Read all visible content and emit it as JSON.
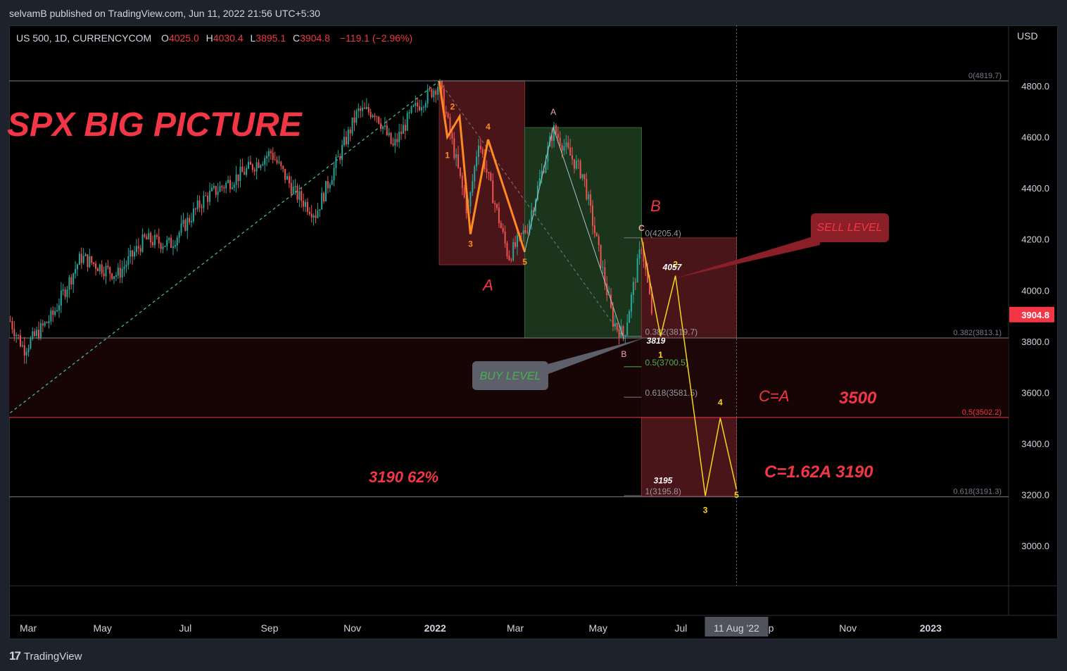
{
  "header": {
    "published": "selvamB published on TradingView.com, Jun 11, 2022 21:56 UTC+5:30"
  },
  "footer": {
    "brand": "TradingView"
  },
  "chart_data": {
    "type": "candlestick",
    "symbol": "US 500, 1D, CURRENCYCOM",
    "ohlc": {
      "O": "4025.0",
      "H": "4030.4",
      "L": "3895.1",
      "C": "3904.8",
      "change": "−119.1 (−2.96%)"
    },
    "currency": "USD",
    "last_price": "3904.8",
    "title": "SPX BIG PICTURE",
    "y_ticks": [
      "4800.0",
      "4600.0",
      "4400.0",
      "4200.0",
      "4000.0",
      "3800.0",
      "3600.0",
      "3400.0",
      "3200.0",
      "3000.0"
    ],
    "y_tick_values": [
      4800,
      4600,
      4400,
      4200,
      4000,
      3800,
      3600,
      3400,
      3200,
      3000
    ],
    "ylim": [
      2840,
      4990
    ],
    "x_ticks": [
      "Mar",
      "May",
      "Jul",
      "Sep",
      "Nov",
      "2022",
      "Mar",
      "May",
      "Jul",
      "Sep",
      "Nov",
      "2023"
    ],
    "x_tick_dates": [
      "2021-03-01",
      "2021-05-01",
      "2021-07-01",
      "2021-09-01",
      "2021-11-01",
      "2022-01-01",
      "2022-03-01",
      "2022-05-01",
      "2022-07-01",
      "2022-09-01",
      "2022-11-01",
      "2023-01-01"
    ],
    "cursor_date_label": "11 Aug '22",
    "fib_levels": [
      {
        "label": "0(4819.7)",
        "value": 4819.7
      },
      {
        "label": "0.382(3813.1)",
        "value": 3813.1
      },
      {
        "label": "0.5(3502.2)",
        "value": 3502.2,
        "color": "#f23645"
      },
      {
        "label": "0.618(3191.3)",
        "value": 3191.3
      }
    ],
    "inner_fib_levels": [
      {
        "label": "0(4205.4)",
        "value": 4205.4
      },
      {
        "label": "0.382(3819.7)",
        "value": 3819.7
      },
      {
        "label": "0.5(3700.5)",
        "value": 3700.5,
        "color": "#4caf50"
      },
      {
        "label": "0.618(3581.5)",
        "value": 3581.5
      },
      {
        "label": "1(3195.8)",
        "value": 3195.8
      }
    ],
    "price_path": [
      [
        "2021-02-22",
        3880
      ],
      [
        "2021-03-04",
        3770
      ],
      [
        "2021-03-25",
        3900
      ],
      [
        "2021-04-15",
        4130
      ],
      [
        "2021-05-12",
        4060
      ],
      [
        "2021-06-01",
        4200
      ],
      [
        "2021-06-20",
        4180
      ],
      [
        "2021-07-15",
        4360
      ],
      [
        "2021-08-15",
        4470
      ],
      [
        "2021-09-02",
        4540
      ],
      [
        "2021-09-20",
        4380
      ],
      [
        "2021-10-05",
        4300
      ],
      [
        "2021-10-25",
        4560
      ],
      [
        "2021-11-05",
        4700
      ],
      [
        "2021-11-18",
        4700
      ],
      [
        "2021-12-01",
        4560
      ],
      [
        "2021-12-15",
        4700
      ],
      [
        "2022-01-04",
        4810
      ],
      [
        "2022-01-25",
        4300
      ],
      [
        "2022-02-02",
        4590
      ],
      [
        "2022-02-24",
        4130
      ],
      [
        "2022-03-10",
        4250
      ],
      [
        "2022-03-29",
        4630
      ],
      [
        "2022-04-20",
        4450
      ],
      [
        "2022-05-12",
        3880
      ],
      [
        "2022-05-20",
        3820
      ],
      [
        "2022-06-02",
        4180
      ],
      [
        "2022-06-10",
        3900
      ]
    ],
    "waves_orange": {
      "points": [
        [
          "2022-01-04",
          4819
        ],
        [
          "2022-01-10",
          4600
        ],
        [
          "2022-01-19",
          4680
        ],
        [
          "2022-01-27",
          4220
        ],
        [
          "2022-02-09",
          4590
        ],
        [
          "2022-03-08",
          4150
        ]
      ],
      "labels": [
        "1",
        "2",
        "3",
        "4",
        "5"
      ],
      "wave_label": "A"
    },
    "waves_green": {
      "points": [
        [
          "2022-03-08",
          4150
        ],
        [
          "2022-03-29",
          4637
        ],
        [
          "2022-05-20",
          3810
        ]
      ],
      "labels": [
        "A",
        "B"
      ],
      "label_b": "B"
    },
    "waves_yellow": {
      "points": [
        [
          "2022-06-02",
          4205
        ],
        [
          "2022-06-16",
          3819
        ],
        [
          "2022-06-27",
          4057
        ],
        [
          "2022-07-19",
          3195
        ],
        [
          "2022-07-30",
          3500
        ],
        [
          "2022-08-11",
          3220
        ]
      ],
      "labels": [
        "C",
        "1",
        "2",
        "3",
        "4",
        "5"
      ],
      "label_big_b": "B"
    },
    "trendline": {
      "from": [
        "2021-02-22",
        3520
      ],
      "to": [
        "2022-01-04",
        4819
      ]
    },
    "annotations": {
      "sell_level": "SELL LEVEL",
      "buy_level": "BUY LEVEL",
      "price_4057": "4057",
      "price_3819": "3819",
      "price_3195": "3195",
      "c_eq_a": "C=A",
      "target_3500": "3500",
      "c_162a": "C=1.62A  3190",
      "left_3190": "3190  62%"
    }
  }
}
